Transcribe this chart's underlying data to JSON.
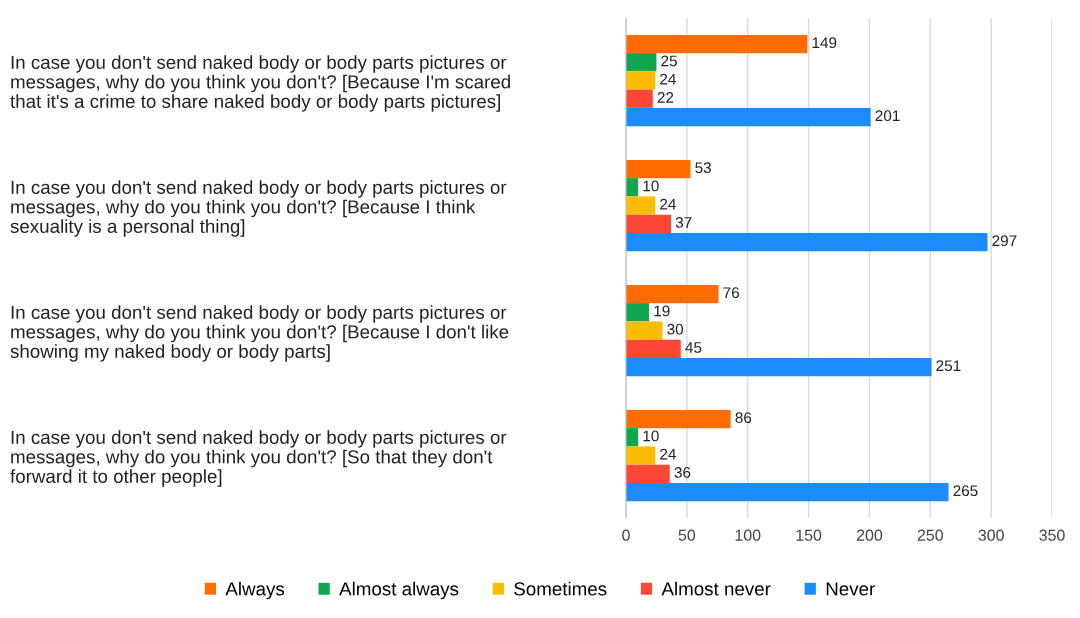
{
  "chart_data": {
    "type": "bar",
    "orientation": "horizontal",
    "categories": [
      "In case you don't send naked body or body parts pictures or\nmessages, why do you think you don't? [Because I'm scared\nthat it's a crime to share naked body or body parts pictures]",
      "In case you don't send naked body or body parts pictures or\nmessages, why do you think you don't? [Because I think\nsexuality is a personal thing]",
      "In case you don't send naked body or body parts pictures or\nmessages, why do you think you don't? [Because I don't like\nshowing my naked body or body parts]",
      "In case you don't send naked body or body parts pictures or\nmessages, why do you think you don't? [So that they don't\nforward it to other people]"
    ],
    "series": [
      {
        "name": "Always",
        "color": "#ff6d01",
        "values": [
          149,
          53,
          76,
          86
        ]
      },
      {
        "name": "Almost always",
        "color": "#0ea64f",
        "values": [
          25,
          10,
          19,
          10
        ]
      },
      {
        "name": "Sometimes",
        "color": "#fbbc04",
        "values": [
          24,
          24,
          30,
          24
        ]
      },
      {
        "name": "Almost never",
        "color": "#fb4836",
        "values": [
          22,
          37,
          45,
          36
        ]
      },
      {
        "name": "Never",
        "color": "#1a8cff",
        "values": [
          201,
          297,
          251,
          265
        ]
      }
    ],
    "xlim": [
      0,
      350
    ],
    "xticks": [
      0,
      50,
      100,
      150,
      200,
      250,
      300,
      350
    ],
    "grid": "x",
    "legend": "bottom",
    "data_labels": true
  }
}
